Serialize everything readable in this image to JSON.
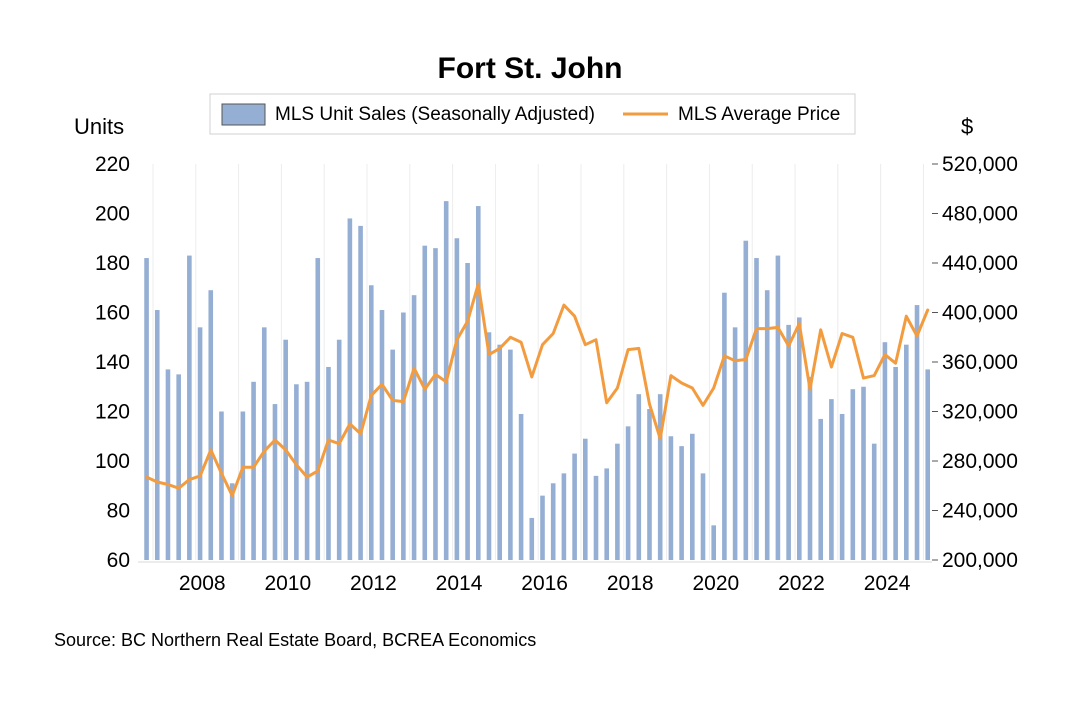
{
  "chart_data": {
    "type": "bar+line",
    "title": "Fort St. John",
    "legend": {
      "position": "top",
      "items": [
        {
          "label": "MLS Unit Sales (Seasonally Adjusted)",
          "kind": "bar",
          "color": "#95aed3"
        },
        {
          "label": "MLS Average Price",
          "kind": "line",
          "color": "#f39c3f"
        }
      ]
    },
    "y_left": {
      "unit_label": "Units",
      "range": [
        60,
        220
      ],
      "ticks": [
        "60",
        "80",
        "100",
        "120",
        "140",
        "160",
        "180",
        "200",
        "220"
      ]
    },
    "y_right": {
      "unit_label": "$",
      "range": [
        200000,
        520000
      ],
      "ticks": [
        "200,000",
        "240,000",
        "280,000",
        "320,000",
        "360,000",
        "400,000",
        "440,000",
        "480,000",
        "520,000"
      ]
    },
    "x": {
      "range": [
        2006.55,
        2025.1
      ],
      "ticks": [
        "2008",
        "2010",
        "2012",
        "2014",
        "2016",
        "2018",
        "2020",
        "2022",
        "2024"
      ]
    },
    "grid": false,
    "series": [
      {
        "name": "MLS Unit Sales (Seasonally Adjusted)",
        "type": "bar",
        "color": "#95aed3",
        "x": [
          2006.75,
          2007.0,
          2007.25,
          2007.5,
          2007.75,
          2008.0,
          2008.25,
          2008.5,
          2008.75,
          2009.0,
          2009.25,
          2009.5,
          2009.75,
          2010.0,
          2010.25,
          2010.5,
          2010.75,
          2011.0,
          2011.25,
          2011.5,
          2011.75,
          2012.0,
          2012.25,
          2012.5,
          2012.75,
          2013.0,
          2013.25,
          2013.5,
          2013.75,
          2014.0,
          2014.25,
          2014.5,
          2014.75,
          2015.0,
          2015.25,
          2015.5,
          2015.75,
          2016.0,
          2016.25,
          2016.5,
          2016.75,
          2017.0,
          2017.25,
          2017.5,
          2017.75,
          2018.0,
          2018.25,
          2018.5,
          2018.75,
          2019.0,
          2019.25,
          2019.5,
          2019.75,
          2020.0,
          2020.25,
          2020.5,
          2020.75,
          2021.0,
          2021.25,
          2021.5,
          2021.75,
          2022.0,
          2022.25,
          2022.5,
          2022.75,
          2023.0,
          2023.25,
          2023.5,
          2023.75,
          2024.0,
          2024.25,
          2024.5,
          2024.75,
          2025.0
        ],
        "values": [
          182,
          161,
          137,
          135,
          183,
          154,
          169,
          120,
          91,
          120,
          132,
          154,
          123,
          149,
          131,
          132,
          182,
          138,
          149,
          198,
          195,
          171,
          161,
          145,
          160,
          167,
          187,
          186,
          205,
          190,
          180,
          203,
          152,
          147,
          145,
          119,
          77,
          86,
          91,
          95,
          103,
          109,
          94,
          97,
          107,
          114,
          127,
          121,
          127,
          110,
          106,
          111,
          95,
          74,
          168,
          154,
          189,
          182,
          169,
          183,
          155,
          158,
          134,
          117,
          125,
          119,
          129,
          130,
          107,
          148,
          138,
          147,
          163,
          137
        ]
      },
      {
        "name": "MLS Average Price",
        "type": "line",
        "color": "#f39c3f",
        "x": [
          2006.75,
          2007.0,
          2007.25,
          2007.5,
          2007.75,
          2008.0,
          2008.25,
          2008.5,
          2008.75,
          2009.0,
          2009.25,
          2009.5,
          2009.75,
          2010.0,
          2010.25,
          2010.5,
          2010.75,
          2011.0,
          2011.25,
          2011.5,
          2011.75,
          2012.0,
          2012.25,
          2012.5,
          2012.75,
          2013.0,
          2013.25,
          2013.5,
          2013.75,
          2014.0,
          2014.25,
          2014.5,
          2014.75,
          2015.0,
          2015.25,
          2015.5,
          2015.75,
          2016.0,
          2016.25,
          2016.5,
          2016.75,
          2017.0,
          2017.25,
          2017.5,
          2017.75,
          2018.0,
          2018.25,
          2018.5,
          2018.75,
          2019.0,
          2019.25,
          2019.5,
          2019.75,
          2020.0,
          2020.25,
          2020.5,
          2020.75,
          2021.0,
          2021.25,
          2021.5,
          2021.75,
          2022.0,
          2022.25,
          2022.5,
          2022.75,
          2023.0,
          2023.25,
          2023.5,
          2023.75,
          2024.0,
          2024.25,
          2024.5,
          2024.75,
          2025.0
        ],
        "values": [
          267000,
          263000,
          261000,
          258000,
          265000,
          268000,
          289000,
          270000,
          252000,
          275000,
          275000,
          288000,
          297000,
          289000,
          277000,
          267000,
          272000,
          297000,
          294000,
          310000,
          302000,
          333000,
          342000,
          329000,
          328000,
          355000,
          338000,
          350000,
          344000,
          378000,
          393000,
          423000,
          366000,
          371000,
          380000,
          376000,
          348000,
          374000,
          383000,
          406000,
          397000,
          374000,
          378000,
          327000,
          339000,
          370000,
          371000,
          326000,
          298000,
          349000,
          343000,
          339000,
          325000,
          339000,
          365000,
          361000,
          362000,
          387000,
          387000,
          388000,
          373000,
          391000,
          338000,
          386000,
          356000,
          383000,
          380000,
          347000,
          349000,
          366000,
          359000,
          397000,
          381000,
          402000
        ]
      }
    ]
  },
  "footer": {
    "source": "Source:  BC Northern Real Estate Board, BCREA Economics"
  }
}
